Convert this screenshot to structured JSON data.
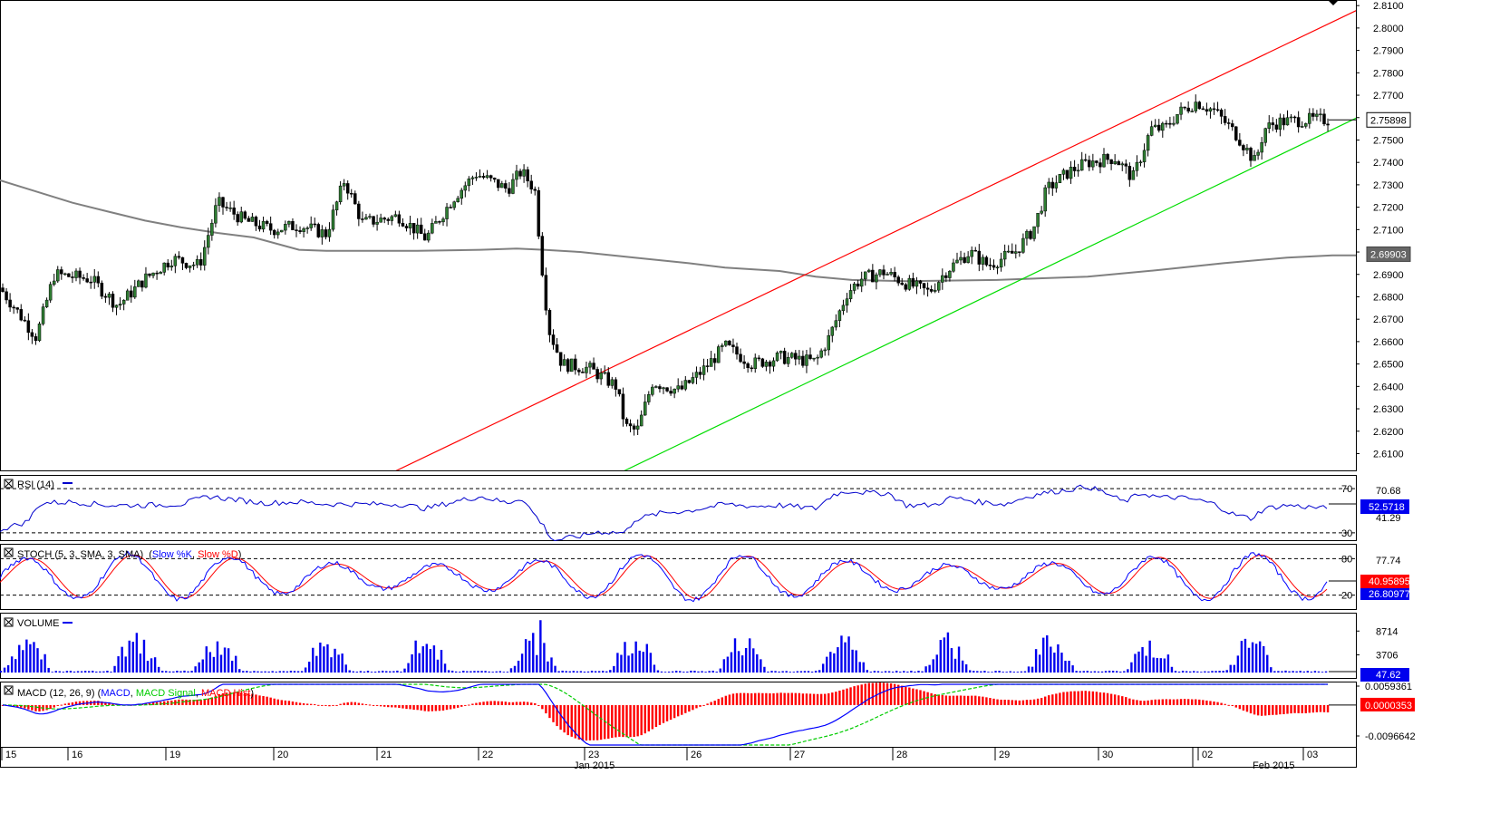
{
  "chart_data": {
    "type": "candlestick",
    "price_panel": {
      "ylim": [
        2.6025,
        2.8125
      ],
      "ticks": [
        "2.8100",
        "2.8000",
        "2.7900",
        "2.7800",
        "2.7700",
        "2.7600",
        "2.7500",
        "2.7400",
        "2.7300",
        "2.7200",
        "2.7100",
        "2.7000",
        "2.6900",
        "2.6800",
        "2.6700",
        "2.6600",
        "2.6500",
        "2.6400",
        "2.6300",
        "2.6200",
        "2.6100"
      ],
      "last_price_label": "2.75898",
      "ma_label": "2.69903",
      "ma200": [
        [
          0,
          2.732
        ],
        [
          40,
          2.727
        ],
        [
          80,
          2.722
        ],
        [
          120,
          2.718
        ],
        [
          160,
          2.714
        ],
        [
          200,
          2.711
        ],
        [
          240,
          2.7085
        ],
        [
          280,
          2.7065
        ],
        [
          330,
          2.701
        ],
        [
          360,
          2.7005
        ],
        [
          400,
          2.7005
        ],
        [
          460,
          2.7005
        ],
        [
          530,
          2.701
        ],
        [
          570,
          2.7015
        ],
        [
          600,
          2.701
        ],
        [
          640,
          2.7
        ],
        [
          700,
          2.6975
        ],
        [
          760,
          2.695
        ],
        [
          800,
          2.693
        ],
        [
          860,
          2.6915
        ],
        [
          900,
          2.689
        ],
        [
          940,
          2.6875
        ],
        [
          1000,
          2.687
        ],
        [
          1100,
          2.6875
        ],
        [
          1200,
          2.689
        ],
        [
          1280,
          2.692
        ],
        [
          1350,
          2.695
        ],
        [
          1420,
          2.6975
        ],
        [
          1470,
          2.6985
        ],
        [
          1496,
          2.6985
        ]
      ],
      "upper_channel": [
        [
          425,
          2.6
        ],
        [
          1500,
          2.8085
        ]
      ],
      "lower_channel": [
        [
          677,
          2.6
        ],
        [
          1500,
          2.7605
        ]
      ],
      "candles_anchor": [
        [
          0,
          2.684
        ],
        [
          40,
          2.662
        ],
        [
          60,
          2.69
        ],
        [
          100,
          2.688
        ],
        [
          130,
          2.676
        ],
        [
          160,
          2.688
        ],
        [
          190,
          2.697
        ],
        [
          220,
          2.694
        ],
        [
          240,
          2.722
        ],
        [
          270,
          2.714
        ],
        [
          300,
          2.71
        ],
        [
          330,
          2.712
        ],
        [
          360,
          2.708
        ],
        [
          380,
          2.732
        ],
        [
          400,
          2.713
        ],
        [
          440,
          2.716
        ],
        [
          470,
          2.706
        ],
        [
          500,
          2.724
        ],
        [
          525,
          2.735
        ],
        [
          560,
          2.728
        ],
        [
          575,
          2.736
        ],
        [
          590,
          2.728
        ],
        [
          600,
          2.685
        ],
        [
          606,
          2.665
        ],
        [
          620,
          2.65
        ],
        [
          650,
          2.648
        ],
        [
          680,
          2.64
        ],
        [
          690,
          2.622
        ],
        [
          703,
          2.62
        ],
        [
          720,
          2.642
        ],
        [
          750,
          2.638
        ],
        [
          775,
          2.647
        ],
        [
          800,
          2.658
        ],
        [
          830,
          2.65
        ],
        [
          860,
          2.653
        ],
        [
          900,
          2.651
        ],
        [
          915,
          2.662
        ],
        [
          935,
          2.682
        ],
        [
          950,
          2.688
        ],
        [
          975,
          2.691
        ],
        [
          1000,
          2.686
        ],
        [
          1025,
          2.682
        ],
        [
          1045,
          2.692
        ],
        [
          1070,
          2.7
        ],
        [
          1090,
          2.694
        ],
        [
          1120,
          2.7
        ],
        [
          1140,
          2.71
        ],
        [
          1155,
          2.728
        ],
        [
          1180,
          2.736
        ],
        [
          1200,
          2.74
        ],
        [
          1230,
          2.742
        ],
        [
          1250,
          2.733
        ],
        [
          1270,
          2.755
        ],
        [
          1285,
          2.755
        ],
        [
          1300,
          2.762
        ],
        [
          1320,
          2.767
        ],
        [
          1340,
          2.763
        ],
        [
          1365,
          2.752
        ],
        [
          1385,
          2.74
        ],
        [
          1395,
          2.755
        ],
        [
          1410,
          2.758
        ],
        [
          1440,
          2.759
        ],
        [
          1466,
          2.759
        ]
      ]
    },
    "rsi": {
      "label": "RSI (14)",
      "ylim": [
        25,
        80
      ],
      "levels": [
        "70",
        "30"
      ],
      "level_values": [
        70,
        30
      ],
      "readouts": [
        "70.68",
        "52.5718",
        "41.29"
      ],
      "points": [
        [
          0,
          33
        ],
        [
          30,
          40
        ],
        [
          45,
          57
        ],
        [
          80,
          58
        ],
        [
          120,
          55
        ],
        [
          160,
          55
        ],
        [
          200,
          56
        ],
        [
          230,
          63
        ],
        [
          260,
          60
        ],
        [
          290,
          57
        ],
        [
          330,
          58
        ],
        [
          360,
          56
        ],
        [
          400,
          56
        ],
        [
          440,
          56
        ],
        [
          470,
          52
        ],
        [
          500,
          58
        ],
        [
          530,
          63
        ],
        [
          560,
          57
        ],
        [
          575,
          62
        ],
        [
          600,
          36
        ],
        [
          610,
          23
        ],
        [
          640,
          27
        ],
        [
          660,
          31
        ],
        [
          690,
          30
        ],
        [
          700,
          42
        ],
        [
          730,
          48
        ],
        [
          760,
          50
        ],
        [
          800,
          56
        ],
        [
          830,
          54
        ],
        [
          860,
          55
        ],
        [
          900,
          52
        ],
        [
          920,
          65
        ],
        [
          940,
          68
        ],
        [
          960,
          66
        ],
        [
          980,
          66
        ],
        [
          1000,
          55
        ],
        [
          1030,
          55
        ],
        [
          1050,
          62
        ],
        [
          1080,
          58
        ],
        [
          1110,
          56
        ],
        [
          1130,
          62
        ],
        [
          1150,
          66
        ],
        [
          1170,
          68
        ],
        [
          1200,
          72
        ],
        [
          1220,
          66
        ],
        [
          1240,
          58
        ],
        [
          1260,
          66
        ],
        [
          1280,
          62
        ],
        [
          1300,
          62
        ],
        [
          1320,
          60
        ],
        [
          1340,
          56
        ],
        [
          1360,
          47
        ],
        [
          1380,
          43
        ],
        [
          1395,
          52
        ],
        [
          1420,
          55
        ],
        [
          1466,
          52
        ]
      ]
    },
    "stoch": {
      "label": "STOCH (5, 3, SMA, 3, SMA)",
      "k_label": "Slow %K",
      "d_label": "Slow %D",
      "ylim": [
        0,
        100
      ],
      "levels": [
        "80",
        "20"
      ],
      "level_values": [
        80,
        20
      ],
      "readouts": [
        "77.74",
        "40.95895",
        "26.80977"
      ]
    },
    "volume": {
      "label": "VOLUME",
      "ylim": [
        0,
        12000
      ],
      "ticks": [
        "8714",
        "3706"
      ],
      "tick_values": [
        8714,
        3706
      ],
      "last_label": "47.62"
    },
    "macd": {
      "label": "MACD (12, 26, 9)",
      "macd_label": "MACD",
      "signal_label": "MACD Signal",
      "hist_label": "MACD Hist",
      "ylim": [
        -0.0125,
        0.0065
      ],
      "ticks": [
        "0.0059361",
        "-0.0096642"
      ],
      "tick_values": [
        0.0059361,
        -0.0096642
      ],
      "last_label": "0.0000353"
    },
    "x_axis": {
      "day_labels": [
        "15",
        "16",
        "19",
        "20",
        "21",
        "22",
        "23",
        "26",
        "27",
        "28",
        "29",
        "30",
        "02",
        "03"
      ],
      "month_labels": [
        "Jan 2015",
        "Feb 2015"
      ]
    },
    "colors": {
      "bull": "#2e7d32",
      "bear": "#000000",
      "ma": "#808080",
      "upper_channel": "#ff0000",
      "lower_channel": "#00dd00",
      "rsi": "#0000cc",
      "stoch_k": "#0000ff",
      "stoch_d": "#ff0000",
      "volume": "#0000ee",
      "macd": "#0000ff",
      "signal": "#00cc00",
      "hist": "#ff0000",
      "label_bg": "#0000ee",
      "price_label_bg": "#ffffff",
      "macd_label_bg": "#ff0000"
    }
  }
}
